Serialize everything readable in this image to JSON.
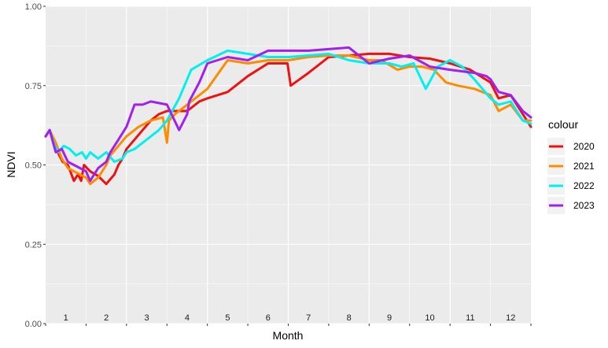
{
  "chart_data": {
    "type": "line",
    "xlabel": "Month",
    "ylabel": "NDVI",
    "xlim": [
      0,
      12
    ],
    "ylim": [
      0,
      1
    ],
    "y_ticks": [
      "0.00",
      "0.25",
      "0.50",
      "0.75",
      "1.00"
    ],
    "month_labels": [
      "1",
      "2",
      "3",
      "4",
      "5",
      "6",
      "7",
      "8",
      "9",
      "10",
      "11",
      "12"
    ],
    "grid": true,
    "legend": {
      "title": "colour",
      "position": "right"
    },
    "series": [
      {
        "name": "2020",
        "color": "#ee1111",
        "x": [
          0.0,
          0.1,
          0.2,
          0.3,
          0.42,
          0.55,
          0.7,
          0.8,
          0.88,
          0.95,
          1.1,
          1.3,
          1.5,
          1.7,
          1.8,
          1.9,
          2.0,
          2.2,
          2.4,
          2.6,
          2.8,
          3.0,
          3.2,
          3.5,
          3.8,
          4.0,
          4.5,
          5.0,
          5.5,
          5.98,
          6.06,
          6.5,
          7.0,
          7.5,
          8.0,
          8.5,
          9.0,
          9.5,
          10.0,
          10.5,
          11.0,
          11.2,
          11.5,
          11.8,
          12.0
        ],
        "y": [
          0.59,
          0.61,
          0.57,
          0.54,
          0.51,
          0.5,
          0.45,
          0.47,
          0.45,
          0.5,
          0.48,
          0.465,
          0.44,
          0.47,
          0.5,
          0.52,
          0.55,
          0.58,
          0.61,
          0.64,
          0.66,
          0.67,
          0.67,
          0.67,
          0.7,
          0.71,
          0.73,
          0.78,
          0.82,
          0.82,
          0.75,
          0.79,
          0.84,
          0.845,
          0.85,
          0.85,
          0.84,
          0.835,
          0.82,
          0.8,
          0.76,
          0.71,
          0.72,
          0.66,
          0.62
        ]
      },
      {
        "name": "2021",
        "color": "#ff8c00",
        "x": [
          0.0,
          0.1,
          0.25,
          0.4,
          0.55,
          0.7,
          0.85,
          1.0,
          1.1,
          1.3,
          1.5,
          1.6,
          1.8,
          2.0,
          2.3,
          2.6,
          2.9,
          3.0,
          3.05,
          3.2,
          3.5,
          4.0,
          4.5,
          5.0,
          5.5,
          6.0,
          6.5,
          7.0,
          7.5,
          8.0,
          8.3,
          8.7,
          9.0,
          9.3,
          9.6,
          9.9,
          10.2,
          10.6,
          11.0,
          11.2,
          11.5,
          11.8,
          12.0
        ],
        "y": [
          0.59,
          0.61,
          0.57,
          0.52,
          0.49,
          0.48,
          0.47,
          0.46,
          0.44,
          0.46,
          0.5,
          0.53,
          0.56,
          0.59,
          0.62,
          0.64,
          0.65,
          0.57,
          0.64,
          0.66,
          0.69,
          0.74,
          0.83,
          0.82,
          0.83,
          0.83,
          0.84,
          0.845,
          0.845,
          0.83,
          0.83,
          0.8,
          0.81,
          0.81,
          0.8,
          0.76,
          0.75,
          0.74,
          0.72,
          0.67,
          0.69,
          0.64,
          0.64
        ]
      },
      {
        "name": "2022",
        "color": "#00f0f0",
        "x": [
          0.0,
          0.1,
          0.2,
          0.3,
          0.45,
          0.6,
          0.75,
          0.9,
          1.0,
          1.1,
          1.3,
          1.5,
          1.7,
          1.9,
          2.0,
          2.2,
          2.5,
          2.8,
          3.0,
          3.3,
          3.6,
          4.0,
          4.5,
          5.0,
          5.5,
          6.0,
          6.5,
          7.0,
          7.5,
          8.0,
          8.5,
          8.8,
          9.1,
          9.4,
          9.7,
          10.0,
          10.3,
          10.6,
          11.0,
          11.2,
          11.5,
          11.8,
          12.0
        ],
        "y": [
          0.59,
          0.61,
          0.57,
          0.54,
          0.56,
          0.55,
          0.53,
          0.54,
          0.52,
          0.54,
          0.52,
          0.54,
          0.51,
          0.52,
          0.54,
          0.55,
          0.58,
          0.61,
          0.64,
          0.71,
          0.8,
          0.83,
          0.86,
          0.85,
          0.84,
          0.84,
          0.845,
          0.85,
          0.83,
          0.82,
          0.82,
          0.81,
          0.82,
          0.74,
          0.81,
          0.83,
          0.81,
          0.77,
          0.71,
          0.69,
          0.7,
          0.64,
          0.63
        ]
      },
      {
        "name": "2023",
        "color": "#a020f0",
        "x": [
          0.0,
          0.1,
          0.25,
          0.4,
          0.55,
          0.7,
          0.85,
          1.0,
          1.1,
          1.3,
          1.5,
          1.6,
          1.8,
          2.0,
          2.2,
          2.4,
          2.6,
          3.0,
          3.3,
          3.5,
          3.55,
          3.8,
          4.0,
          4.5,
          5.0,
          5.5,
          6.0,
          6.5,
          7.0,
          7.5,
          8.0,
          8.5,
          9.0,
          9.5,
          10.0,
          10.3,
          10.6,
          10.9,
          11.0,
          11.2,
          11.5,
          11.8,
          12.0
        ],
        "y": [
          0.59,
          0.61,
          0.54,
          0.55,
          0.51,
          0.5,
          0.49,
          0.48,
          0.45,
          0.49,
          0.51,
          0.54,
          0.58,
          0.62,
          0.69,
          0.69,
          0.7,
          0.69,
          0.61,
          0.66,
          0.7,
          0.76,
          0.82,
          0.84,
          0.83,
          0.86,
          0.86,
          0.86,
          0.865,
          0.87,
          0.82,
          0.835,
          0.845,
          0.81,
          0.8,
          0.795,
          0.79,
          0.78,
          0.77,
          0.73,
          0.72,
          0.67,
          0.65
        ]
      }
    ]
  }
}
